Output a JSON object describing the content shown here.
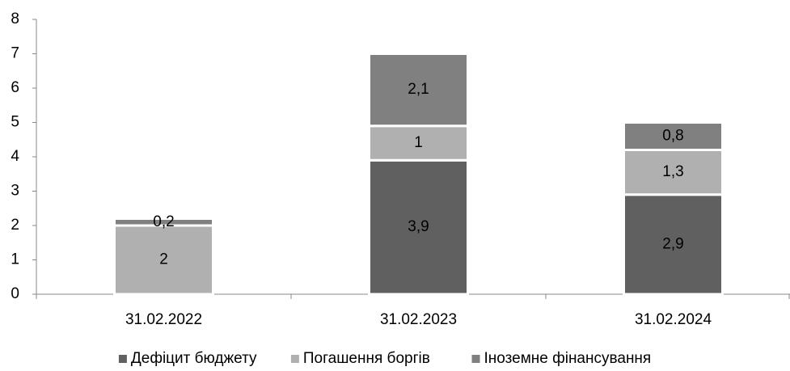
{
  "chart_data": {
    "type": "stacked_bar",
    "categories": [
      "31.02.2022",
      "31.02.2023",
      "31.02.2024"
    ],
    "series": [
      {
        "name": "Дефіцит бюджету",
        "color": "#606060",
        "values": [
          null,
          3.9,
          2.9
        ],
        "value_labels": [
          null,
          "3,9",
          "2,9"
        ]
      },
      {
        "name": "Погашення боргів",
        "color": "#b0b0b0",
        "values": [
          2,
          1,
          1.3
        ],
        "value_labels": [
          "2",
          "1",
          "1,3"
        ]
      },
      {
        "name": "Іноземне фінансування",
        "color": "#808080",
        "values": [
          0.2,
          2.1,
          0.8
        ],
        "value_labels": [
          "0,2",
          "2,1",
          "0,8"
        ]
      }
    ],
    "ylim": [
      0,
      8
    ],
    "yticks": [
      0,
      1,
      2,
      3,
      4,
      5,
      6,
      7,
      8
    ],
    "grid": false,
    "legend": "bottom"
  }
}
